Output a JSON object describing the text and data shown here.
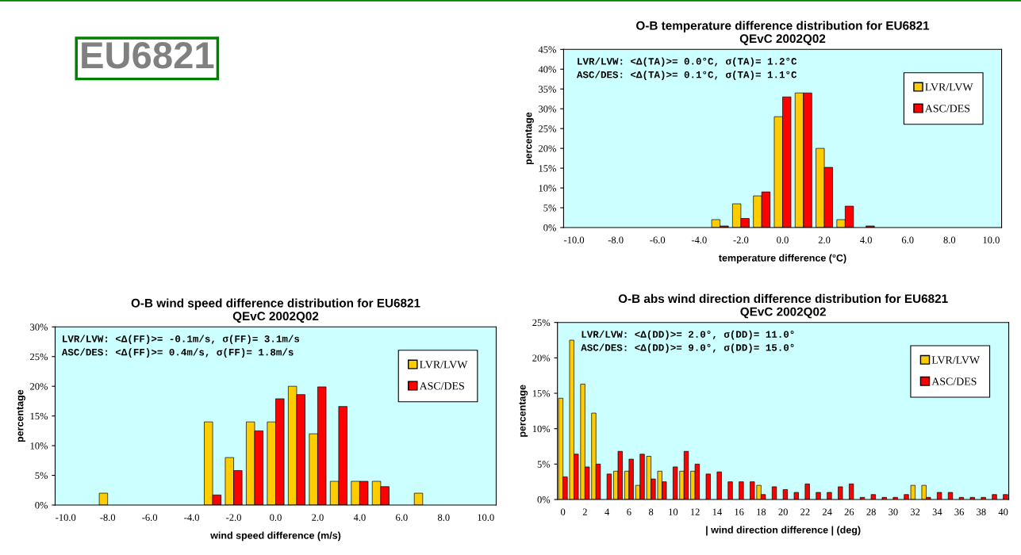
{
  "chart_data": [
    {
      "type": "other",
      "annotations": [
        "EU6821"
      ],
      "color": "#008000"
    },
    {
      "type": "bar",
      "title": "O-B temperature difference distribution for EU6821\nQEvC 2002Q02",
      "xlabel": "temperature difference (°C)",
      "ylabel": "percentage",
      "annotations": [
        "LVR/LVW: <Δ(TA)>= 0.0°C, σ(TA)= 1.2°C",
        "ASC/DES: <Δ(TA)>= 0.1°C, σ(TA)= 1.1°C"
      ],
      "series": [
        {
          "name": "LVR/LVW",
          "color": "#ffcc00",
          "x": [
            -3,
            -2,
            -1,
            0,
            1,
            2,
            3
          ],
          "values": [
            2,
            6,
            8,
            28,
            34,
            20,
            2
          ]
        },
        {
          "name": "ASC/DES",
          "color": "#ff0000",
          "x": [
            -3,
            -2,
            -1,
            0,
            1,
            2,
            3,
            4
          ],
          "values": [
            0.4,
            2.3,
            9,
            33,
            34,
            15.2,
            5.4,
            0.4
          ]
        }
      ],
      "xlim": [
        -10.5,
        10.5
      ],
      "xticks": [
        {
          "value": -10,
          "label": "-10.0"
        },
        {
          "value": -8,
          "label": "-8.0"
        },
        {
          "value": -6,
          "label": "-6.0"
        },
        {
          "value": -4,
          "label": "-4.0"
        },
        {
          "value": -2,
          "label": "-2.0"
        },
        {
          "value": 0,
          "label": "0.0"
        },
        {
          "value": 2,
          "label": "2.0"
        },
        {
          "value": 4,
          "label": "4.0"
        },
        {
          "value": 6,
          "label": "6.0"
        },
        {
          "value": 8,
          "label": "8.0"
        },
        {
          "value": 10,
          "label": "10.0"
        }
      ],
      "ylim": [
        0,
        45
      ],
      "yticks": [
        {
          "value": 0,
          "label": "0%"
        },
        {
          "value": 5,
          "label": "5%"
        },
        {
          "value": 10,
          "label": "10%"
        },
        {
          "value": 15,
          "label": "15%"
        },
        {
          "value": 20,
          "label": "20%"
        },
        {
          "value": 25,
          "label": "25%"
        },
        {
          "value": 30,
          "label": "30%"
        },
        {
          "value": 35,
          "label": "35%"
        },
        {
          "value": 40,
          "label": "40%"
        },
        {
          "value": 45,
          "label": "45%"
        }
      ],
      "legend": "top right",
      "grid": false
    },
    {
      "type": "bar",
      "title": "O-B wind speed difference distribution for EU6821\nQEvC 2002Q02",
      "xlabel": "wind speed difference (m/s)",
      "ylabel": "percentage",
      "annotations": [
        "LVR/LVW: <Δ(FF)>= -0.1m/s, σ(FF)= 3.1m/s",
        "ASC/DES: <Δ(FF)>= 0.4m/s, σ(FF)= 1.8m/s"
      ],
      "series": [
        {
          "name": "LVR/LVW",
          "color": "#ffcc00",
          "x": [
            -8,
            -3,
            -2,
            -1,
            0,
            1,
            2,
            3,
            4,
            5,
            7
          ],
          "values": [
            2,
            14,
            8,
            14,
            14,
            20,
            12,
            4,
            4,
            4,
            2
          ]
        },
        {
          "name": "ASC/DES",
          "color": "#ff0000",
          "x": [
            -3,
            -2,
            -1,
            0,
            1,
            2,
            3,
            4,
            5
          ],
          "values": [
            1.7,
            5.8,
            12.5,
            17.9,
            18.6,
            19.9,
            16.6,
            4,
            3.1
          ]
        }
      ],
      "xlim": [
        -10.5,
        10.5
      ],
      "xticks": [
        {
          "value": -10,
          "label": "-10.0"
        },
        {
          "value": -8,
          "label": "-8.0"
        },
        {
          "value": -6,
          "label": "-6.0"
        },
        {
          "value": -4,
          "label": "-4.0"
        },
        {
          "value": -2,
          "label": "-2.0"
        },
        {
          "value": 0,
          "label": "0.0"
        },
        {
          "value": 2,
          "label": "2.0"
        },
        {
          "value": 4,
          "label": "4.0"
        },
        {
          "value": 6,
          "label": "6.0"
        },
        {
          "value": 8,
          "label": "8.0"
        },
        {
          "value": 10,
          "label": "10.0"
        }
      ],
      "ylim": [
        0,
        30
      ],
      "yticks": [
        {
          "value": 0,
          "label": "0%"
        },
        {
          "value": 5,
          "label": "5%"
        },
        {
          "value": 10,
          "label": "10%"
        },
        {
          "value": 15,
          "label": "15%"
        },
        {
          "value": 20,
          "label": "20%"
        },
        {
          "value": 25,
          "label": "25%"
        },
        {
          "value": 30,
          "label": "30%"
        }
      ],
      "legend": "top right",
      "grid": false
    },
    {
      "type": "bar",
      "title": "O-B abs wind direction difference distribution for EU6821\nQEvC 2002Q02",
      "xlabel": "| wind direction difference | (deg)",
      "ylabel": "percentage",
      "annotations": [
        "LVR/LVW: <Δ(DD)>= 2.0°, σ(DD)= 11.0°",
        "ASC/DES: <Δ(DD)>= 9.0°, σ(DD)= 15.0°"
      ],
      "series": [
        {
          "name": "LVR/LVW",
          "color": "#ffcc00",
          "x": [
            0,
            1,
            2,
            3,
            5,
            6,
            7,
            8,
            9,
            11,
            12,
            18,
            32,
            33
          ],
          "values": [
            14.3,
            22.5,
            16.3,
            12.2,
            4,
            4,
            2,
            6.1,
            4,
            4,
            4,
            2,
            2,
            2
          ]
        },
        {
          "name": "ASC/DES",
          "color": "#ff0000",
          "x": [
            0,
            1,
            2,
            3,
            4,
            5,
            6,
            7,
            8,
            9,
            10,
            11,
            12,
            13,
            14,
            15,
            16,
            17,
            18,
            19,
            20,
            21,
            22,
            23,
            24,
            25,
            26,
            27,
            28,
            29,
            30,
            31,
            33,
            34,
            35,
            36,
            37,
            38,
            39,
            40
          ],
          "values": [
            3.2,
            6.4,
            4.6,
            5,
            3.6,
            6.8,
            5.7,
            6.4,
            2.9,
            2.5,
            4.6,
            6.8,
            5,
            3.6,
            3.9,
            2.5,
            2.5,
            2.5,
            0.7,
            1.8,
            1.4,
            1,
            2.2,
            1,
            1,
            1.8,
            2.2,
            0.3,
            0.7,
            0.3,
            0.3,
            0.7,
            0.3,
            1,
            1,
            0.3,
            0.3,
            0.3,
            0.7,
            0.7
          ]
        }
      ],
      "xlim": [
        -0.5,
        40.5
      ],
      "xticks": [
        0,
        2,
        4,
        6,
        8,
        10,
        12,
        14,
        16,
        18,
        20,
        22,
        24,
        26,
        28,
        30,
        32,
        34,
        36,
        38,
        40
      ],
      "ylim": [
        0,
        25
      ],
      "yticks": [
        {
          "value": 0,
          "label": "0%"
        },
        {
          "value": 5,
          "label": "5%"
        },
        {
          "value": 10,
          "label": "10%"
        },
        {
          "value": 15,
          "label": "15%"
        },
        {
          "value": 20,
          "label": "20%"
        },
        {
          "value": 25,
          "label": "25%"
        }
      ],
      "legend": "top right",
      "grid": false
    }
  ]
}
